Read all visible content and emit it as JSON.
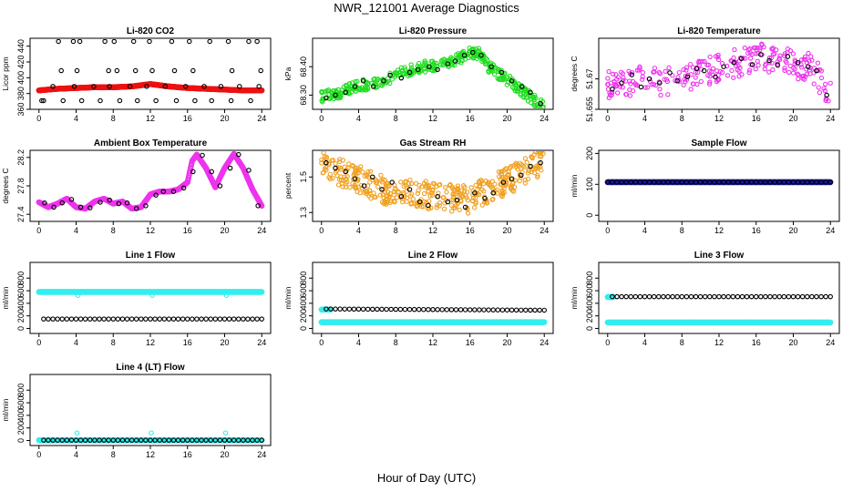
{
  "figure": {
    "title": "NWR_121001  Average Diagnostics",
    "xlabel": "Hour of Day (UTC)"
  },
  "colors": {
    "red": "#ee1111",
    "green": "#22dd22",
    "magenta": "#ee33ee",
    "orange": "#f0a020",
    "navy": "#1a1aa0",
    "cyan": "#33eeee",
    "black": "#000000"
  },
  "chart_data": [
    {
      "id": "co2",
      "type": "scatter",
      "title": "Li-820 CO2",
      "ylabel": "Licor ppm",
      "xlim": [
        0,
        24
      ],
      "xticks": [
        0,
        4,
        8,
        12,
        16,
        20,
        24
      ],
      "ylim": [
        360,
        450
      ],
      "yticks": [
        360,
        380,
        400,
        420,
        440
      ],
      "series": [
        {
          "name": "samples",
          "color": "red",
          "style": "dense",
          "x": [
            0,
            2,
            4,
            6,
            8,
            10,
            12,
            14,
            16,
            18,
            20,
            22,
            24
          ],
          "y": [
            384,
            386,
            387,
            388,
            388,
            389,
            392,
            389,
            387,
            386,
            385,
            384,
            384
          ]
        },
        {
          "name": "high points",
          "color": "black",
          "style": "open",
          "x": [
            0.3,
            2.1,
            2.4,
            3.7,
            4.1,
            4.4,
            7.1,
            7.5,
            8.1,
            8.4,
            10.2,
            10.4,
            11.9,
            12.2,
            14.3,
            14.6,
            16.2,
            16.6,
            18.4,
            20.4,
            20.8,
            22.6,
            23.5,
            23.9
          ],
          "y": [
            371,
            446,
            409,
            446,
            409,
            446,
            446,
            409,
            446,
            409,
            446,
            409,
            446,
            409,
            446,
            409,
            446,
            409,
            446,
            446,
            409,
            446,
            446,
            409
          ]
        },
        {
          "name": "low points",
          "color": "black",
          "style": "open",
          "x": [
            0.5,
            1.5,
            2.6,
            3.8,
            4.6,
            5.9,
            6.6,
            7.6,
            8.7,
            9.8,
            10.6,
            11.6,
            12.6,
            13.6,
            14.8,
            15.8,
            16.8,
            17.8,
            18.6,
            19.6,
            20.7,
            21.6,
            22.8,
            23.7
          ],
          "y": [
            371,
            389,
            371,
            389,
            371,
            389,
            371,
            389,
            371,
            389,
            371,
            389,
            371,
            389,
            371,
            389,
            371,
            389,
            371,
            389,
            371,
            389,
            371,
            389
          ]
        }
      ]
    },
    {
      "id": "pressure",
      "type": "scatter",
      "title": "Li-820 Pressure",
      "ylabel": "kPa",
      "xlim": [
        0,
        24
      ],
      "xticks": [
        0,
        4,
        8,
        12,
        16,
        20,
        24
      ],
      "ylim": [
        68.25,
        68.5
      ],
      "yticks": [
        68.3,
        68.4
      ],
      "ytick_labels": [
        "68.30",
        "68.40"
      ],
      "series": [
        {
          "name": "samples",
          "color": "green",
          "style": "band",
          "width": 0.02,
          "x": [
            0,
            2,
            4,
            6,
            8,
            10,
            12,
            14,
            16,
            17,
            18,
            20,
            22,
            24
          ],
          "y": [
            68.295,
            68.31,
            68.335,
            68.34,
            68.37,
            68.395,
            68.405,
            68.415,
            68.45,
            68.445,
            68.4,
            68.355,
            68.305,
            68.255
          ]
        },
        {
          "name": "averages",
          "color": "black",
          "style": "open",
          "x": [
            0.5,
            1.5,
            2.6,
            3.6,
            4.5,
            5.6,
            6.7,
            7.4,
            8.6,
            9.5,
            10.4,
            11.6,
            12.5,
            13.6,
            14.4,
            15.4,
            16.3,
            17.2,
            18.3,
            19.4,
            20.5,
            21.6,
            22.5,
            23.6
          ],
          "y": [
            68.29,
            68.3,
            68.31,
            68.33,
            68.35,
            68.33,
            68.35,
            68.37,
            68.36,
            68.38,
            68.39,
            68.4,
            68.39,
            68.41,
            68.42,
            68.44,
            68.45,
            68.44,
            68.4,
            68.38,
            68.35,
            68.33,
            68.31,
            68.27
          ]
        }
      ]
    },
    {
      "id": "licor-temp",
      "type": "scatter",
      "title": "Li-820 Temperature",
      "ylabel": "degrees C",
      "xlim": [
        0,
        24
      ],
      "xticks": [
        0,
        4,
        8,
        12,
        16,
        20,
        24
      ],
      "ylim": [
        51.655,
        51.69
      ],
      "yticks": [
        51.655,
        51.67
      ],
      "series": [
        {
          "name": "samples",
          "color": "magenta",
          "style": "scatterband",
          "width": 0.007,
          "x": [
            0,
            2,
            4,
            6,
            8,
            10,
            12,
            14,
            16,
            18,
            20,
            22,
            24
          ],
          "y": [
            51.667,
            51.668,
            51.67,
            51.668,
            51.671,
            51.672,
            51.676,
            51.678,
            51.681,
            51.68,
            51.677,
            51.676,
            51.661
          ]
        },
        {
          "name": "averages",
          "color": "black",
          "style": "open",
          "x": [
            0.5,
            1.5,
            2.6,
            3.6,
            4.5,
            5.6,
            6.7,
            7.5,
            8.6,
            9.6,
            10.4,
            11.6,
            12.5,
            13.6,
            14.4,
            15.6,
            16.5,
            17.4,
            18.3,
            19.4,
            20.5,
            21.6,
            22.5,
            23.6
          ],
          "y": [
            51.665,
            51.668,
            51.672,
            51.666,
            51.67,
            51.668,
            51.673,
            51.669,
            51.671,
            51.675,
            51.674,
            51.671,
            51.676,
            51.678,
            51.68,
            51.677,
            51.682,
            51.679,
            51.677,
            51.681,
            51.678,
            51.676,
            51.674,
            51.662
          ]
        }
      ]
    },
    {
      "id": "ambient-temp",
      "type": "scatter",
      "title": "Ambient Box Temperature",
      "ylabel": "degrees C",
      "xlim": [
        0,
        24
      ],
      "xticks": [
        0,
        4,
        8,
        12,
        16,
        20,
        24
      ],
      "ylim": [
        27.3,
        28.3
      ],
      "yticks": [
        27.4,
        27.8,
        28.2
      ],
      "series": [
        {
          "name": "samples",
          "color": "magenta",
          "style": "dense",
          "x": [
            0,
            1,
            2,
            3,
            4,
            5,
            6,
            7,
            8,
            9,
            10,
            11,
            12,
            13,
            14,
            15,
            16,
            16.5,
            17,
            18,
            19,
            20,
            21,
            22,
            23,
            24
          ],
          "y": [
            27.57,
            27.5,
            27.55,
            27.62,
            27.5,
            27.48,
            27.58,
            27.62,
            27.55,
            27.58,
            27.48,
            27.5,
            27.68,
            27.72,
            27.72,
            27.75,
            27.85,
            28.15,
            28.24,
            28.05,
            27.78,
            28.05,
            28.25,
            28.05,
            27.75,
            27.52
          ]
        },
        {
          "name": "averages",
          "color": "black",
          "style": "open",
          "x": [
            0.6,
            1.6,
            2.5,
            3.5,
            4.5,
            5.5,
            6.6,
            7.6,
            8.6,
            9.5,
            10.5,
            11.5,
            12.6,
            13.4,
            14.5,
            15.6,
            16.6,
            17.6,
            18.6,
            19.5,
            20.6,
            21.5,
            22.6,
            23.6
          ],
          "y": [
            27.56,
            27.5,
            27.56,
            27.61,
            27.5,
            27.49,
            27.57,
            27.6,
            27.55,
            27.56,
            27.48,
            27.52,
            27.67,
            27.72,
            27.72,
            27.77,
            28.0,
            28.23,
            28.0,
            27.8,
            28.05,
            28.24,
            28.02,
            27.52
          ]
        }
      ]
    },
    {
      "id": "rh",
      "type": "scatter",
      "title": "Gas Stream RH",
      "ylabel": "percent",
      "xlim": [
        0,
        24
      ],
      "xticks": [
        0,
        4,
        8,
        12,
        16,
        20,
        24
      ],
      "ylim": [
        1.25,
        1.65
      ],
      "yticks": [
        1.3,
        1.5
      ],
      "ytick_labels": [
        "1.3",
        "1.5"
      ],
      "series": [
        {
          "name": "samples",
          "color": "orange",
          "style": "band",
          "width": 0.08,
          "x": [
            0,
            2,
            4,
            6,
            8,
            10,
            12,
            14,
            16,
            18,
            20,
            22,
            24
          ],
          "y": [
            1.58,
            1.53,
            1.49,
            1.44,
            1.41,
            1.41,
            1.39,
            1.38,
            1.37,
            1.43,
            1.48,
            1.53,
            1.6
          ]
        },
        {
          "name": "averages",
          "color": "black",
          "style": "open",
          "x": [
            0.5,
            1.5,
            2.6,
            3.6,
            4.6,
            5.5,
            6.5,
            7.6,
            8.6,
            9.5,
            10.6,
            11.5,
            12.5,
            13.6,
            14.6,
            15.5,
            16.5,
            17.6,
            18.5,
            19.6,
            20.5,
            21.5,
            22.5,
            23.6
          ],
          "y": [
            1.58,
            1.55,
            1.53,
            1.49,
            1.45,
            1.5,
            1.43,
            1.47,
            1.39,
            1.43,
            1.36,
            1.34,
            1.39,
            1.36,
            1.37,
            1.33,
            1.41,
            1.38,
            1.41,
            1.47,
            1.49,
            1.51,
            1.56,
            1.58
          ]
        }
      ]
    },
    {
      "id": "sample-flow",
      "type": "scatter",
      "title": "Sample Flow",
      "ylabel": "ml/min",
      "xlim": [
        0,
        24
      ],
      "xticks": [
        0,
        4,
        8,
        12,
        16,
        20,
        24
      ],
      "ylim": [
        -20,
        210
      ],
      "yticks": [
        0,
        100,
        200
      ],
      "series": [
        {
          "name": "samples",
          "color": "navy",
          "style": "dense",
          "x": [
            0,
            24
          ],
          "y": [
            107,
            107
          ]
        },
        {
          "name": "averages",
          "color": "black",
          "style": "open",
          "every": 0.5,
          "x": [
            0,
            24
          ],
          "y": [
            107,
            107
          ]
        }
      ]
    },
    {
      "id": "line1",
      "type": "scatter",
      "title": "Line 1 Flow",
      "ylabel": "ml/min",
      "xlim": [
        0,
        24
      ],
      "xticks": [
        0,
        4,
        8,
        12,
        16,
        20,
        24
      ],
      "ylim": [
        -80,
        1050
      ],
      "yticks": [
        0,
        200,
        400,
        600,
        800
      ],
      "series": [
        {
          "name": "cyan",
          "color": "cyan",
          "style": "dense",
          "x": [
            0,
            24
          ],
          "y": [
            580,
            580
          ]
        },
        {
          "name": "cyan dips",
          "color": "cyan",
          "style": "open",
          "x": [
            4.2,
            12.2,
            20.2
          ],
          "y": [
            525,
            525,
            525
          ]
        },
        {
          "name": "averages",
          "color": "black",
          "style": "open",
          "every": 0.5,
          "x": [
            0.5,
            24
          ],
          "y": [
            150,
            150
          ]
        }
      ]
    },
    {
      "id": "line2",
      "type": "scatter",
      "title": "Line 2 Flow",
      "ylabel": "ml/min",
      "xlim": [
        0,
        24
      ],
      "xticks": [
        0,
        4,
        8,
        12,
        16,
        20,
        24
      ],
      "ylim": [
        -80,
        1050
      ],
      "yticks": [
        0,
        200,
        400,
        600,
        800
      ],
      "series": [
        {
          "name": "cyan",
          "color": "cyan",
          "style": "dense",
          "x": [
            0,
            24
          ],
          "y": [
            100,
            100
          ]
        },
        {
          "name": "cyan start",
          "color": "cyan",
          "style": "dense",
          "x": [
            0,
            1
          ],
          "y": [
            300,
            300
          ]
        },
        {
          "name": "averages",
          "color": "black",
          "style": "open",
          "every": 0.5,
          "x": [
            0.5,
            24
          ],
          "y": [
            310,
            290
          ]
        }
      ]
    },
    {
      "id": "line3",
      "type": "scatter",
      "title": "Line 3 Flow",
      "ylabel": "ml/min",
      "xlim": [
        0,
        24
      ],
      "xticks": [
        0,
        4,
        8,
        12,
        16,
        20,
        24
      ],
      "ylim": [
        -80,
        1050
      ],
      "yticks": [
        0,
        200,
        400,
        600,
        800
      ],
      "series": [
        {
          "name": "cyan",
          "color": "cyan",
          "style": "dense",
          "x": [
            0,
            24
          ],
          "y": [
            95,
            95
          ]
        },
        {
          "name": "cyan start",
          "color": "cyan",
          "style": "dense",
          "x": [
            0,
            0.6
          ],
          "y": [
            500,
            500
          ]
        },
        {
          "name": "averages",
          "color": "black",
          "style": "open",
          "every": 0.5,
          "x": [
            0.5,
            24
          ],
          "y": [
            505,
            505
          ]
        }
      ]
    },
    {
      "id": "line4",
      "type": "scatter",
      "title": "Line 4 (LT) Flow",
      "ylabel": "ml/min",
      "xlim": [
        0,
        24
      ],
      "xticks": [
        0,
        4,
        8,
        12,
        16,
        20,
        24
      ],
      "ylim": [
        -80,
        1050
      ],
      "yticks": [
        0,
        200,
        400,
        600,
        800
      ],
      "series": [
        {
          "name": "cyan",
          "color": "cyan",
          "style": "dense",
          "x": [
            0,
            24
          ],
          "y": [
            5,
            5
          ]
        },
        {
          "name": "cyan spikes",
          "color": "cyan",
          "style": "open",
          "x": [
            4.1,
            12.1,
            20.1
          ],
          "y": [
            120,
            120,
            120
          ]
        },
        {
          "name": "averages",
          "color": "black",
          "style": "open",
          "every": 0.5,
          "x": [
            0.5,
            24
          ],
          "y": [
            5,
            5
          ]
        }
      ]
    }
  ]
}
